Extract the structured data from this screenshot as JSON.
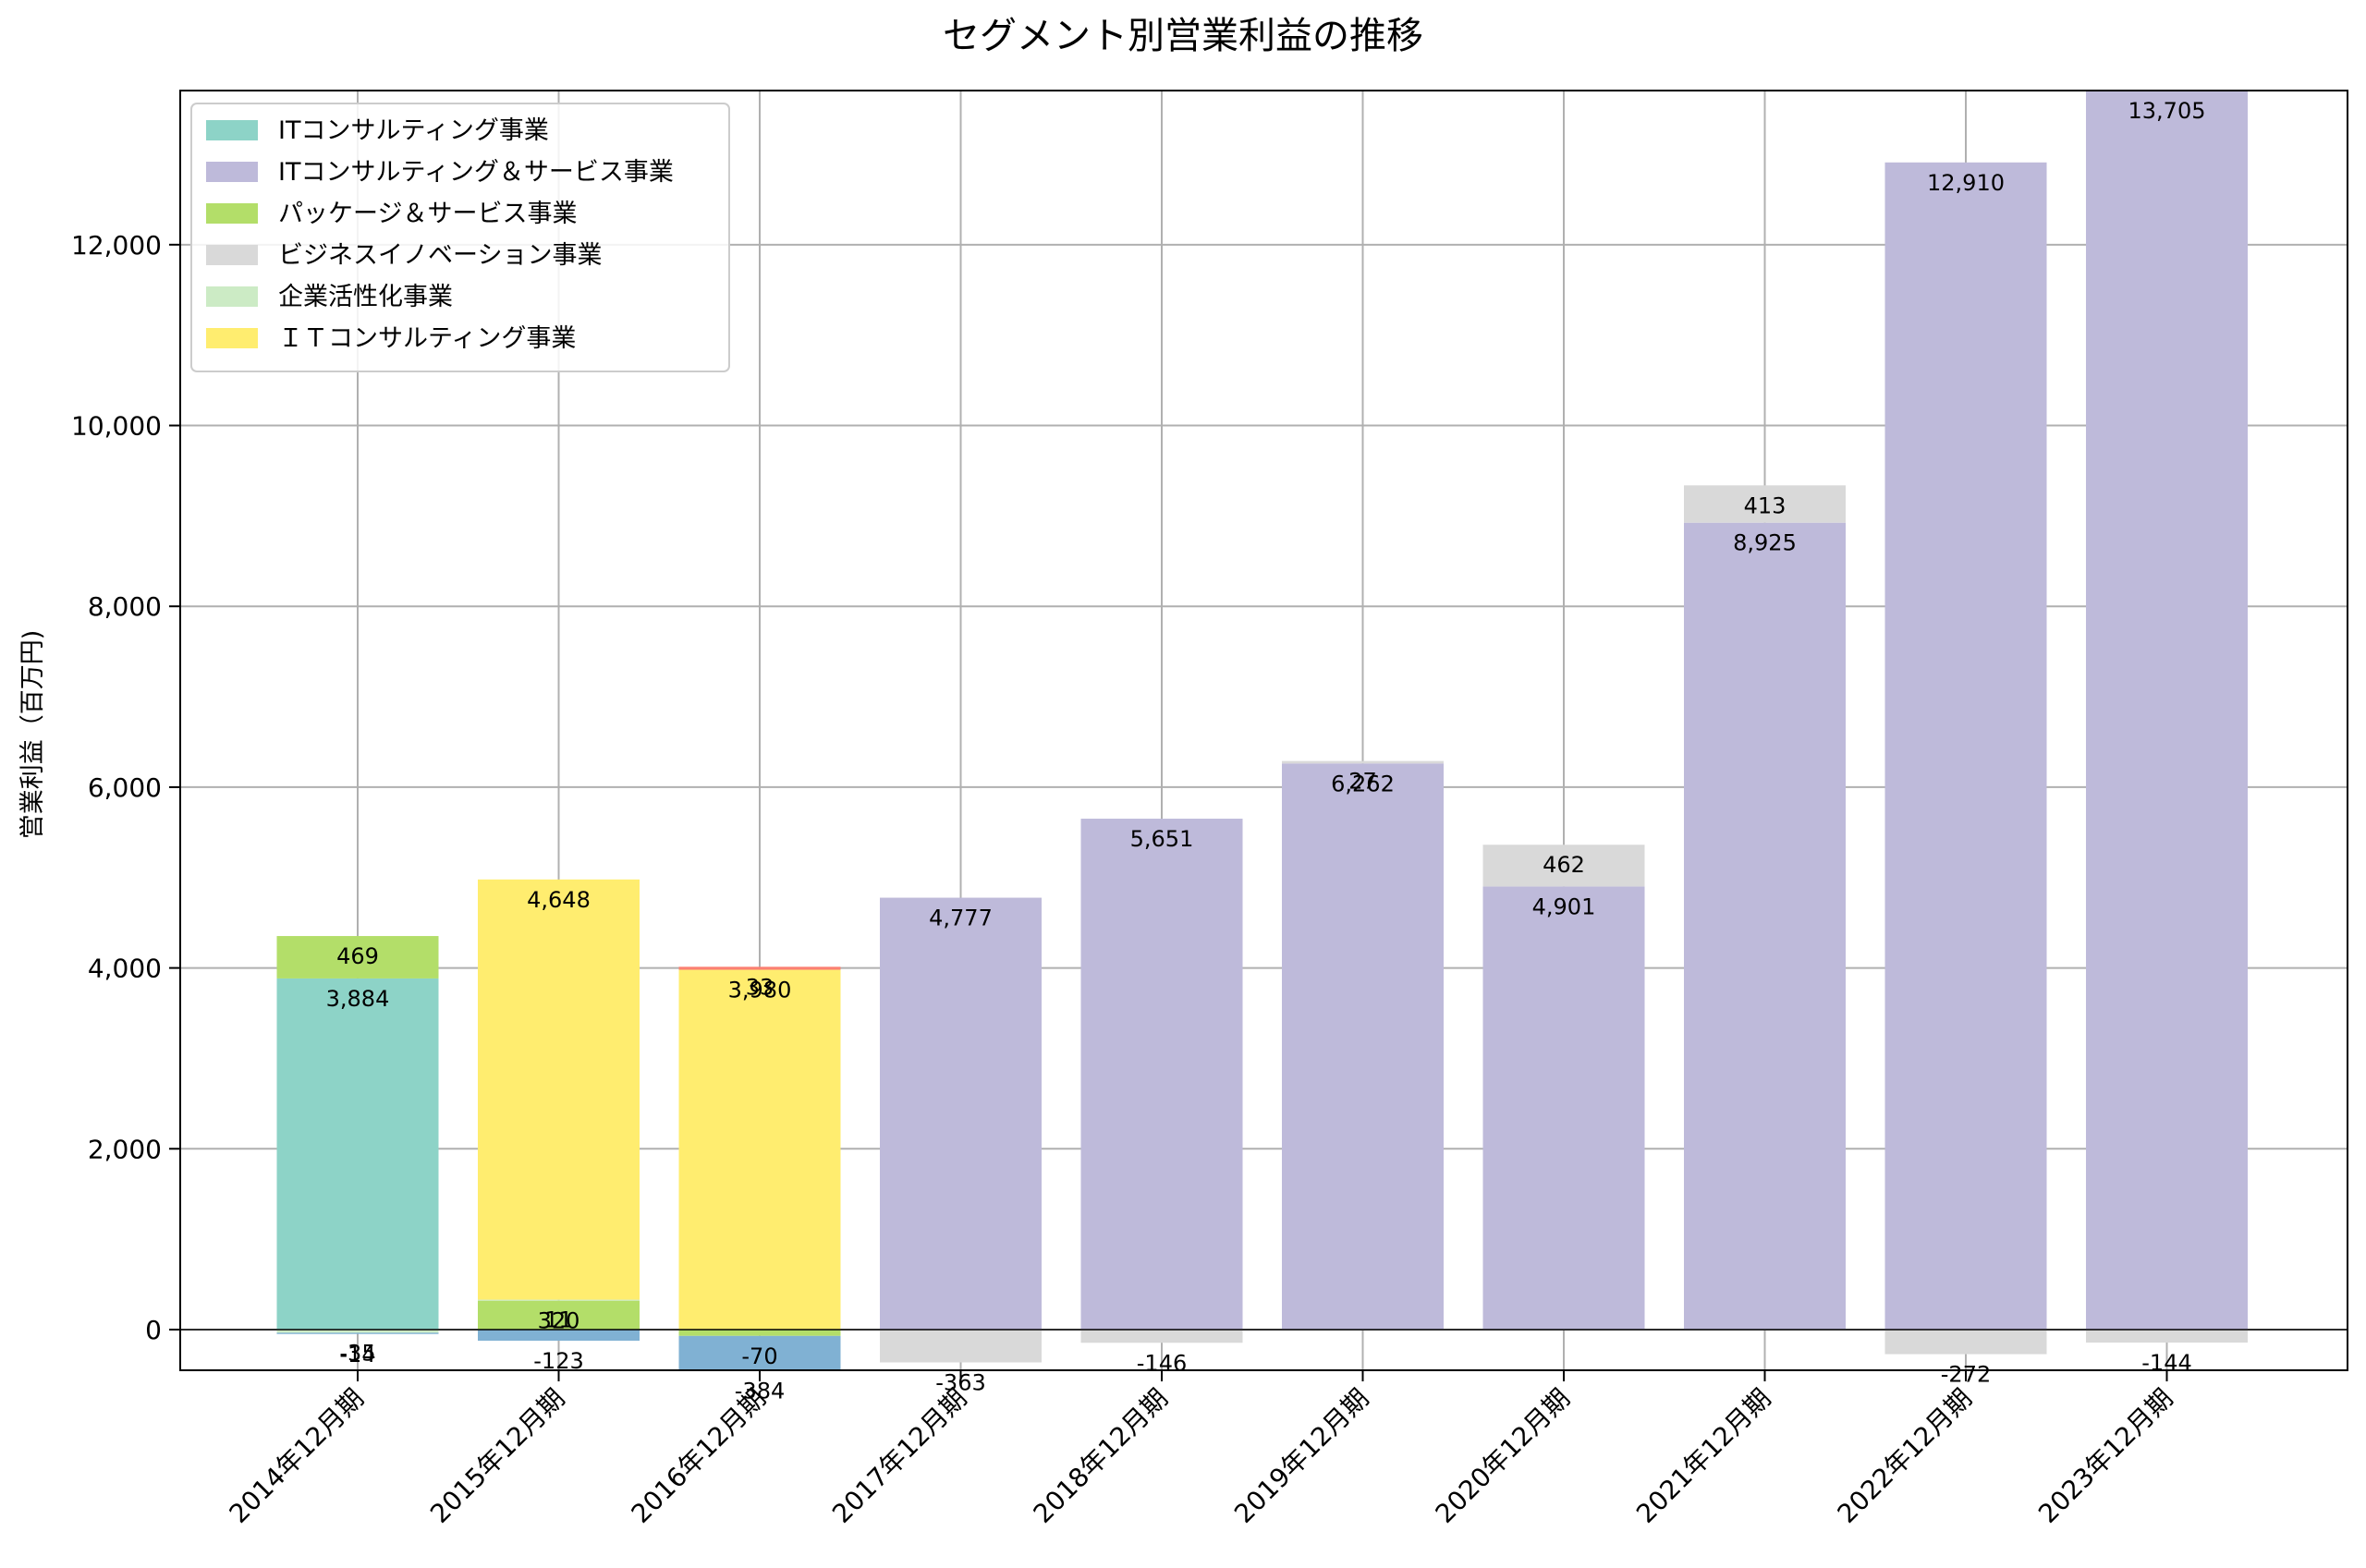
{
  "chart_data": {
    "type": "bar",
    "stacked": true,
    "title": "セグメント別営業利益の推移",
    "xlabel": "",
    "ylabel": "営業利益（百万円)",
    "ylim": [
      -450,
      13705
    ],
    "yticks": [
      0,
      2000,
      4000,
      6000,
      8000,
      10000,
      12000
    ],
    "ytick_labels": [
      "0",
      "2,000",
      "4,000",
      "6,000",
      "8,000",
      "10,000",
      "12,000"
    ],
    "grid": true,
    "legend_position": "top-left",
    "categories": [
      "2014年12月期",
      "2015年12月期",
      "2016年12月期",
      "2017年12月期",
      "2018年12月期",
      "2019年12月期",
      "2020年12月期",
      "2021年12月期",
      "2022年12月期",
      "2023年12月期"
    ],
    "series": [
      {
        "name": "ITコンサルティング事業",
        "color": "#8dd3c7",
        "legend": true,
        "values": [
          3884,
          null,
          null,
          null,
          null,
          null,
          null,
          null,
          null,
          null
        ]
      },
      {
        "name": "ITコンサルティング＆サービス事業",
        "color": "#bebada",
        "legend": true,
        "values": [
          null,
          null,
          null,
          4777,
          5651,
          6262,
          4901,
          8925,
          12910,
          13705
        ]
      },
      {
        "name": "パッケージ＆サービス事業",
        "color": "#b3de69",
        "legend": true,
        "values": [
          469,
          320,
          -70,
          null,
          null,
          null,
          null,
          null,
          null,
          null
        ]
      },
      {
        "name": "ビジネスイノベーション事業",
        "color": "#d9d9d9",
        "legend": true,
        "values": [
          null,
          null,
          null,
          -363,
          -146,
          27,
          462,
          413,
          -272,
          -144
        ]
      },
      {
        "name": "企業活性化事業",
        "color": "#ccebc5",
        "legend": true,
        "values": [
          -35,
          11,
          null,
          null,
          null,
          null,
          null,
          null,
          null,
          null
        ]
      },
      {
        "name": "ＩＴコンサルティング事業",
        "color": "#ffed6f",
        "legend": true,
        "values": [
          null,
          4648,
          3980,
          null,
          null,
          null,
          null,
          null,
          null,
          null
        ]
      },
      {
        "name": "",
        "color": "#80b1d3",
        "legend": false,
        "values": [
          -14,
          -123,
          -384,
          null,
          null,
          null,
          null,
          null,
          null,
          null
        ]
      },
      {
        "name": "",
        "color": "#fb8072",
        "legend": false,
        "values": [
          null,
          null,
          33,
          null,
          null,
          null,
          null,
          null,
          null,
          null
        ]
      }
    ]
  }
}
